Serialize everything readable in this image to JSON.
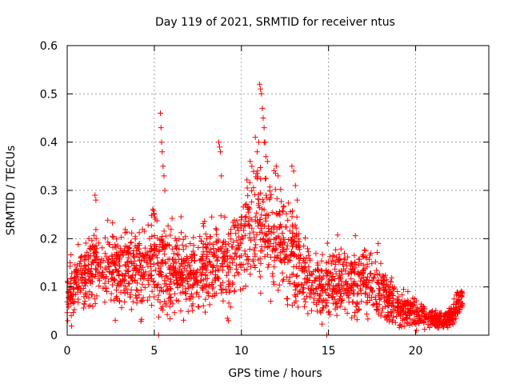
{
  "chart_data": {
    "type": "scatter",
    "title": "Day 119 of 2021, SRMTID for receiver ntus",
    "xlabel": "GPS time / hours",
    "ylabel": "SRMTID / TECUs",
    "xlim": [
      0,
      24.2
    ],
    "ylim": [
      0,
      0.6
    ],
    "x_ticks": [
      0,
      5,
      10,
      15,
      20
    ],
    "x_tick_labels": [
      "0",
      "5",
      "10",
      "15",
      "20"
    ],
    "y_ticks": [
      0,
      0.1,
      0.2,
      0.3,
      0.4,
      0.5,
      0.6
    ],
    "y_tick_labels": [
      "0",
      "0.1",
      "0.2",
      "0.3",
      "0.4",
      "0.5",
      "0.6"
    ],
    "grid": true,
    "marker": "plus",
    "series": [
      {
        "name": "SRMTID",
        "color": "#ff0000",
        "profile": [
          [
            0.0,
            0.09,
            0.03
          ],
          [
            0.5,
            0.1,
            0.035
          ],
          [
            1.0,
            0.11,
            0.035
          ],
          [
            1.5,
            0.15,
            0.04
          ],
          [
            2.0,
            0.14,
            0.04
          ],
          [
            2.5,
            0.15,
            0.04
          ],
          [
            3.0,
            0.13,
            0.04
          ],
          [
            3.5,
            0.15,
            0.04
          ],
          [
            4.0,
            0.13,
            0.04
          ],
          [
            4.5,
            0.14,
            0.04
          ],
          [
            5.0,
            0.17,
            0.045
          ],
          [
            5.5,
            0.14,
            0.045
          ],
          [
            6.0,
            0.13,
            0.04
          ],
          [
            6.5,
            0.13,
            0.04
          ],
          [
            7.0,
            0.13,
            0.04
          ],
          [
            7.5,
            0.13,
            0.04
          ],
          [
            8.0,
            0.14,
            0.04
          ],
          [
            8.5,
            0.15,
            0.045
          ],
          [
            9.0,
            0.15,
            0.045
          ],
          [
            9.5,
            0.16,
            0.045
          ],
          [
            10.0,
            0.18,
            0.05
          ],
          [
            10.5,
            0.22,
            0.06
          ],
          [
            11.0,
            0.24,
            0.065
          ],
          [
            11.5,
            0.22,
            0.06
          ],
          [
            12.0,
            0.2,
            0.055
          ],
          [
            12.5,
            0.19,
            0.055
          ],
          [
            13.0,
            0.16,
            0.05
          ],
          [
            13.5,
            0.13,
            0.04
          ],
          [
            14.0,
            0.11,
            0.035
          ],
          [
            14.5,
            0.1,
            0.03
          ],
          [
            15.0,
            0.11,
            0.035
          ],
          [
            15.5,
            0.11,
            0.035
          ],
          [
            16.0,
            0.11,
            0.035
          ],
          [
            16.5,
            0.11,
            0.035
          ],
          [
            17.0,
            0.12,
            0.035
          ],
          [
            17.5,
            0.11,
            0.035
          ],
          [
            18.0,
            0.1,
            0.03
          ],
          [
            18.5,
            0.07,
            0.025
          ],
          [
            19.0,
            0.06,
            0.02
          ],
          [
            19.5,
            0.05,
            0.015
          ],
          [
            20.0,
            0.05,
            0.015
          ],
          [
            20.5,
            0.04,
            0.012
          ],
          [
            21.0,
            0.035,
            0.01
          ],
          [
            21.5,
            0.03,
            0.01
          ],
          [
            22.0,
            0.04,
            0.012
          ],
          [
            22.5,
            0.07,
            0.015
          ],
          [
            22.7,
            0.08,
            0.015
          ]
        ],
        "notable_points": [
          [
            0.03,
            0.03
          ],
          [
            1.6,
            0.29
          ],
          [
            1.65,
            0.28
          ],
          [
            5.35,
            0.46
          ],
          [
            5.38,
            0.43
          ],
          [
            5.42,
            0.4
          ],
          [
            5.45,
            0.38
          ],
          [
            5.5,
            0.35
          ],
          [
            5.55,
            0.33
          ],
          [
            5.6,
            0.3
          ],
          [
            8.7,
            0.4
          ],
          [
            8.75,
            0.39
          ],
          [
            8.8,
            0.38
          ],
          [
            8.85,
            0.33
          ],
          [
            10.5,
            0.36
          ],
          [
            10.6,
            0.35
          ],
          [
            10.8,
            0.41
          ],
          [
            10.9,
            0.38
          ],
          [
            11.0,
            0.4
          ],
          [
            11.05,
            0.52
          ],
          [
            11.1,
            0.51
          ],
          [
            11.15,
            0.5
          ],
          [
            11.2,
            0.47
          ],
          [
            11.25,
            0.45
          ],
          [
            11.3,
            0.43
          ],
          [
            11.35,
            0.4
          ],
          [
            11.4,
            0.37
          ],
          [
            11.5,
            0.36
          ],
          [
            12.0,
            0.35
          ],
          [
            12.1,
            0.33
          ],
          [
            12.9,
            0.35
          ],
          [
            13.0,
            0.34
          ],
          [
            13.1,
            0.31
          ],
          [
            13.2,
            0.28
          ],
          [
            9.2,
            0.035
          ],
          [
            9.25,
            0.03
          ],
          [
            5.25,
            0.0
          ],
          [
            14.9,
            0.0
          ],
          [
            20.05,
            0.01
          ],
          [
            17.85,
            0.19
          ]
        ]
      }
    ]
  }
}
